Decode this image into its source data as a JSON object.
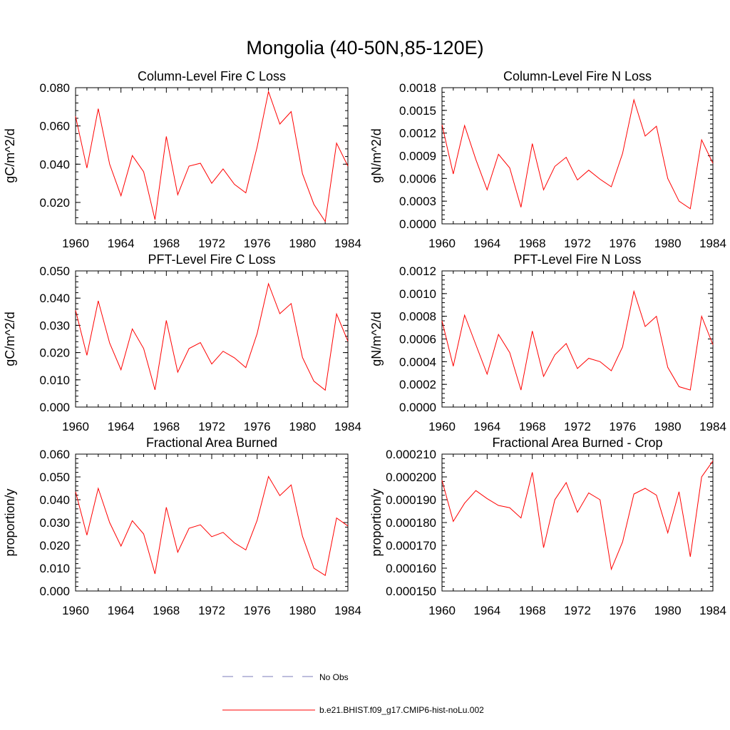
{
  "figure": {
    "title": "Mongolia (40-50N,85-120E)"
  },
  "legend": {
    "obs_label": "No Obs",
    "model_label": "b.e21.BHIST.f09_g17.CMIP6-hist-noLu.002",
    "obs_color": "#7b7bb8",
    "model_color": "#ff0000"
  },
  "chart_data": [
    {
      "type": "line",
      "title": "Column-Level Fire C Loss",
      "ylabel": "gC/m^2/d",
      "xlim": [
        1960,
        1984
      ],
      "ylim": [
        0.0088,
        0.08
      ],
      "xticks": [
        1960,
        1964,
        1968,
        1972,
        1976,
        1980,
        1984
      ],
      "yticks": [
        0.02,
        0.04,
        0.06,
        0.08
      ],
      "ytick_labels": [
        "0.020",
        "0.040",
        "0.060",
        "0.080"
      ],
      "x": [
        1960,
        1961,
        1962,
        1963,
        1964,
        1965,
        1966,
        1967,
        1968,
        1969,
        1970,
        1971,
        1972,
        1973,
        1974,
        1975,
        1976,
        1977,
        1978,
        1979,
        1980,
        1981,
        1982,
        1983,
        1984
      ],
      "series": [
        {
          "values": [
            0.065,
            0.038,
            0.069,
            0.04,
            0.0235,
            0.0445,
            0.036,
            0.011,
            0.0545,
            0.024,
            0.039,
            0.0405,
            0.03,
            0.0375,
            0.0295,
            0.025,
            0.049,
            0.078,
            0.061,
            0.0675,
            0.035,
            0.019,
            0.01,
            0.051,
            0.039
          ]
        }
      ]
    },
    {
      "type": "line",
      "title": "Column-Level Fire N Loss",
      "ylabel": "gN/m^2/d",
      "xlim": [
        1960,
        1984
      ],
      "ylim": [
        0.0,
        0.0018
      ],
      "xticks": [
        1960,
        1964,
        1968,
        1972,
        1976,
        1980,
        1984
      ],
      "yticks": [
        0.0,
        0.0003,
        0.0006,
        0.0009,
        0.0012,
        0.0015,
        0.0018
      ],
      "ytick_labels": [
        "0.0000",
        "0.0003",
        "0.0006",
        "0.0009",
        "0.0012",
        "0.0015",
        "0.0018"
      ],
      "x": [
        1960,
        1961,
        1962,
        1963,
        1964,
        1965,
        1966,
        1967,
        1968,
        1969,
        1970,
        1971,
        1972,
        1973,
        1974,
        1975,
        1976,
        1977,
        1978,
        1979,
        1980,
        1981,
        1982,
        1983,
        1984
      ],
      "series": [
        {
          "values": [
            0.00131,
            0.00066,
            0.0013,
            0.00085,
            0.00045,
            0.00092,
            0.00074,
            0.00022,
            0.00106,
            0.00045,
            0.00076,
            0.00088,
            0.00058,
            0.00071,
            0.00059,
            0.00049,
            0.00093,
            0.00164,
            0.00116,
            0.00129,
            0.0006,
            0.0003,
            0.0002,
            0.00111,
            0.0008
          ]
        }
      ]
    },
    {
      "type": "line",
      "title": "PFT-Level Fire C Loss",
      "ylabel": "gC/m^2/d",
      "xlim": [
        1960,
        1984
      ],
      "ylim": [
        0.0,
        0.05
      ],
      "xticks": [
        1960,
        1964,
        1968,
        1972,
        1976,
        1980,
        1984
      ],
      "yticks": [
        0.0,
        0.01,
        0.02,
        0.03,
        0.04,
        0.05
      ],
      "ytick_labels": [
        "0.000",
        "0.010",
        "0.020",
        "0.030",
        "0.040",
        "0.050"
      ],
      "x": [
        1960,
        1961,
        1962,
        1963,
        1964,
        1965,
        1966,
        1967,
        1968,
        1969,
        1970,
        1971,
        1972,
        1973,
        1974,
        1975,
        1976,
        1977,
        1978,
        1979,
        1980,
        1981,
        1982,
        1983,
        1984
      ],
      "series": [
        {
          "values": [
            0.0355,
            0.019,
            0.039,
            0.0235,
            0.0137,
            0.0287,
            0.0215,
            0.0063,
            0.0318,
            0.0128,
            0.0215,
            0.0237,
            0.0158,
            0.0205,
            0.0181,
            0.0145,
            0.027,
            0.0453,
            0.0343,
            0.038,
            0.0182,
            0.0095,
            0.0062,
            0.0342,
            0.0242
          ]
        }
      ]
    },
    {
      "type": "line",
      "title": "PFT-Level Fire N Loss",
      "ylabel": "gN/m^2/d",
      "xlim": [
        1960,
        1984
      ],
      "ylim": [
        0.0,
        0.0012
      ],
      "xticks": [
        1960,
        1964,
        1968,
        1972,
        1976,
        1980,
        1984
      ],
      "yticks": [
        0.0,
        0.0002,
        0.0004,
        0.0006,
        0.0008,
        0.001,
        0.0012
      ],
      "ytick_labels": [
        "0.0000",
        "0.0002",
        "0.0004",
        "0.0006",
        "0.0008",
        "0.0010",
        "0.0012"
      ],
      "x": [
        1960,
        1961,
        1962,
        1963,
        1964,
        1965,
        1966,
        1967,
        1968,
        1969,
        1970,
        1971,
        1972,
        1973,
        1974,
        1975,
        1976,
        1977,
        1978,
        1979,
        1980,
        1981,
        1982,
        1983,
        1984
      ],
      "series": [
        {
          "values": [
            0.00076,
            0.00036,
            0.00081,
            0.00055,
            0.00029,
            0.00064,
            0.00048,
            0.00015,
            0.00067,
            0.00027,
            0.00046,
            0.00056,
            0.00034,
            0.00043,
            0.0004,
            0.00032,
            0.00053,
            0.00102,
            0.00071,
            0.0008,
            0.00035,
            0.00018,
            0.00015,
            0.0008,
            0.00055
          ]
        }
      ]
    },
    {
      "type": "line",
      "title": "Fractional Area Burned",
      "ylabel": "proportion/y",
      "xlim": [
        1960,
        1984
      ],
      "ylim": [
        0.0,
        0.06
      ],
      "xticks": [
        1960,
        1964,
        1968,
        1972,
        1976,
        1980,
        1984
      ],
      "yticks": [
        0.0,
        0.01,
        0.02,
        0.03,
        0.04,
        0.05,
        0.06
      ],
      "ytick_labels": [
        "0.000",
        "0.010",
        "0.020",
        "0.030",
        "0.040",
        "0.050",
        "0.060"
      ],
      "x": [
        1960,
        1961,
        1962,
        1963,
        1964,
        1965,
        1966,
        1967,
        1968,
        1969,
        1970,
        1971,
        1972,
        1973,
        1974,
        1975,
        1976,
        1977,
        1978,
        1979,
        1980,
        1981,
        1982,
        1983,
        1984
      ],
      "series": [
        {
          "values": [
            0.0435,
            0.0245,
            0.045,
            0.03,
            0.0197,
            0.0308,
            0.025,
            0.0075,
            0.0367,
            0.017,
            0.0275,
            0.029,
            0.0238,
            0.0257,
            0.0211,
            0.018,
            0.031,
            0.0502,
            0.0418,
            0.0465,
            0.024,
            0.01,
            0.0068,
            0.032,
            0.0285
          ]
        }
      ]
    },
    {
      "type": "line",
      "title": "Fractional Area Burned - Crop",
      "ylabel": "proportion/y",
      "xlim": [
        1960,
        1984
      ],
      "ylim": [
        0.00015,
        0.00021
      ],
      "xticks": [
        1960,
        1964,
        1968,
        1972,
        1976,
        1980,
        1984
      ],
      "yticks": [
        0.00015,
        0.00016,
        0.00017,
        0.00018,
        0.00019,
        0.0002,
        0.00021
      ],
      "ytick_labels": [
        "0.000150",
        "0.000160",
        "0.000170",
        "0.000180",
        "0.000190",
        "0.000200",
        "0.000210"
      ],
      "x": [
        1960,
        1961,
        1962,
        1963,
        1964,
        1965,
        1966,
        1967,
        1968,
        1969,
        1970,
        1971,
        1972,
        1973,
        1974,
        1975,
        1976,
        1977,
        1978,
        1979,
        1980,
        1981,
        1982,
        1983,
        1984
      ],
      "series": [
        {
          "values": [
            0.0001985,
            0.0001805,
            0.0001885,
            0.000194,
            0.0001905,
            0.0001875,
            0.0001865,
            0.000182,
            0.000202,
            0.000169,
            0.00019,
            0.0001975,
            0.0001845,
            0.000193,
            0.00019,
            0.0001595,
            0.0001715,
            0.0001925,
            0.000195,
            0.000192,
            0.0001755,
            0.0001935,
            0.000165,
            0.0002,
            0.000207
          ]
        }
      ]
    }
  ]
}
